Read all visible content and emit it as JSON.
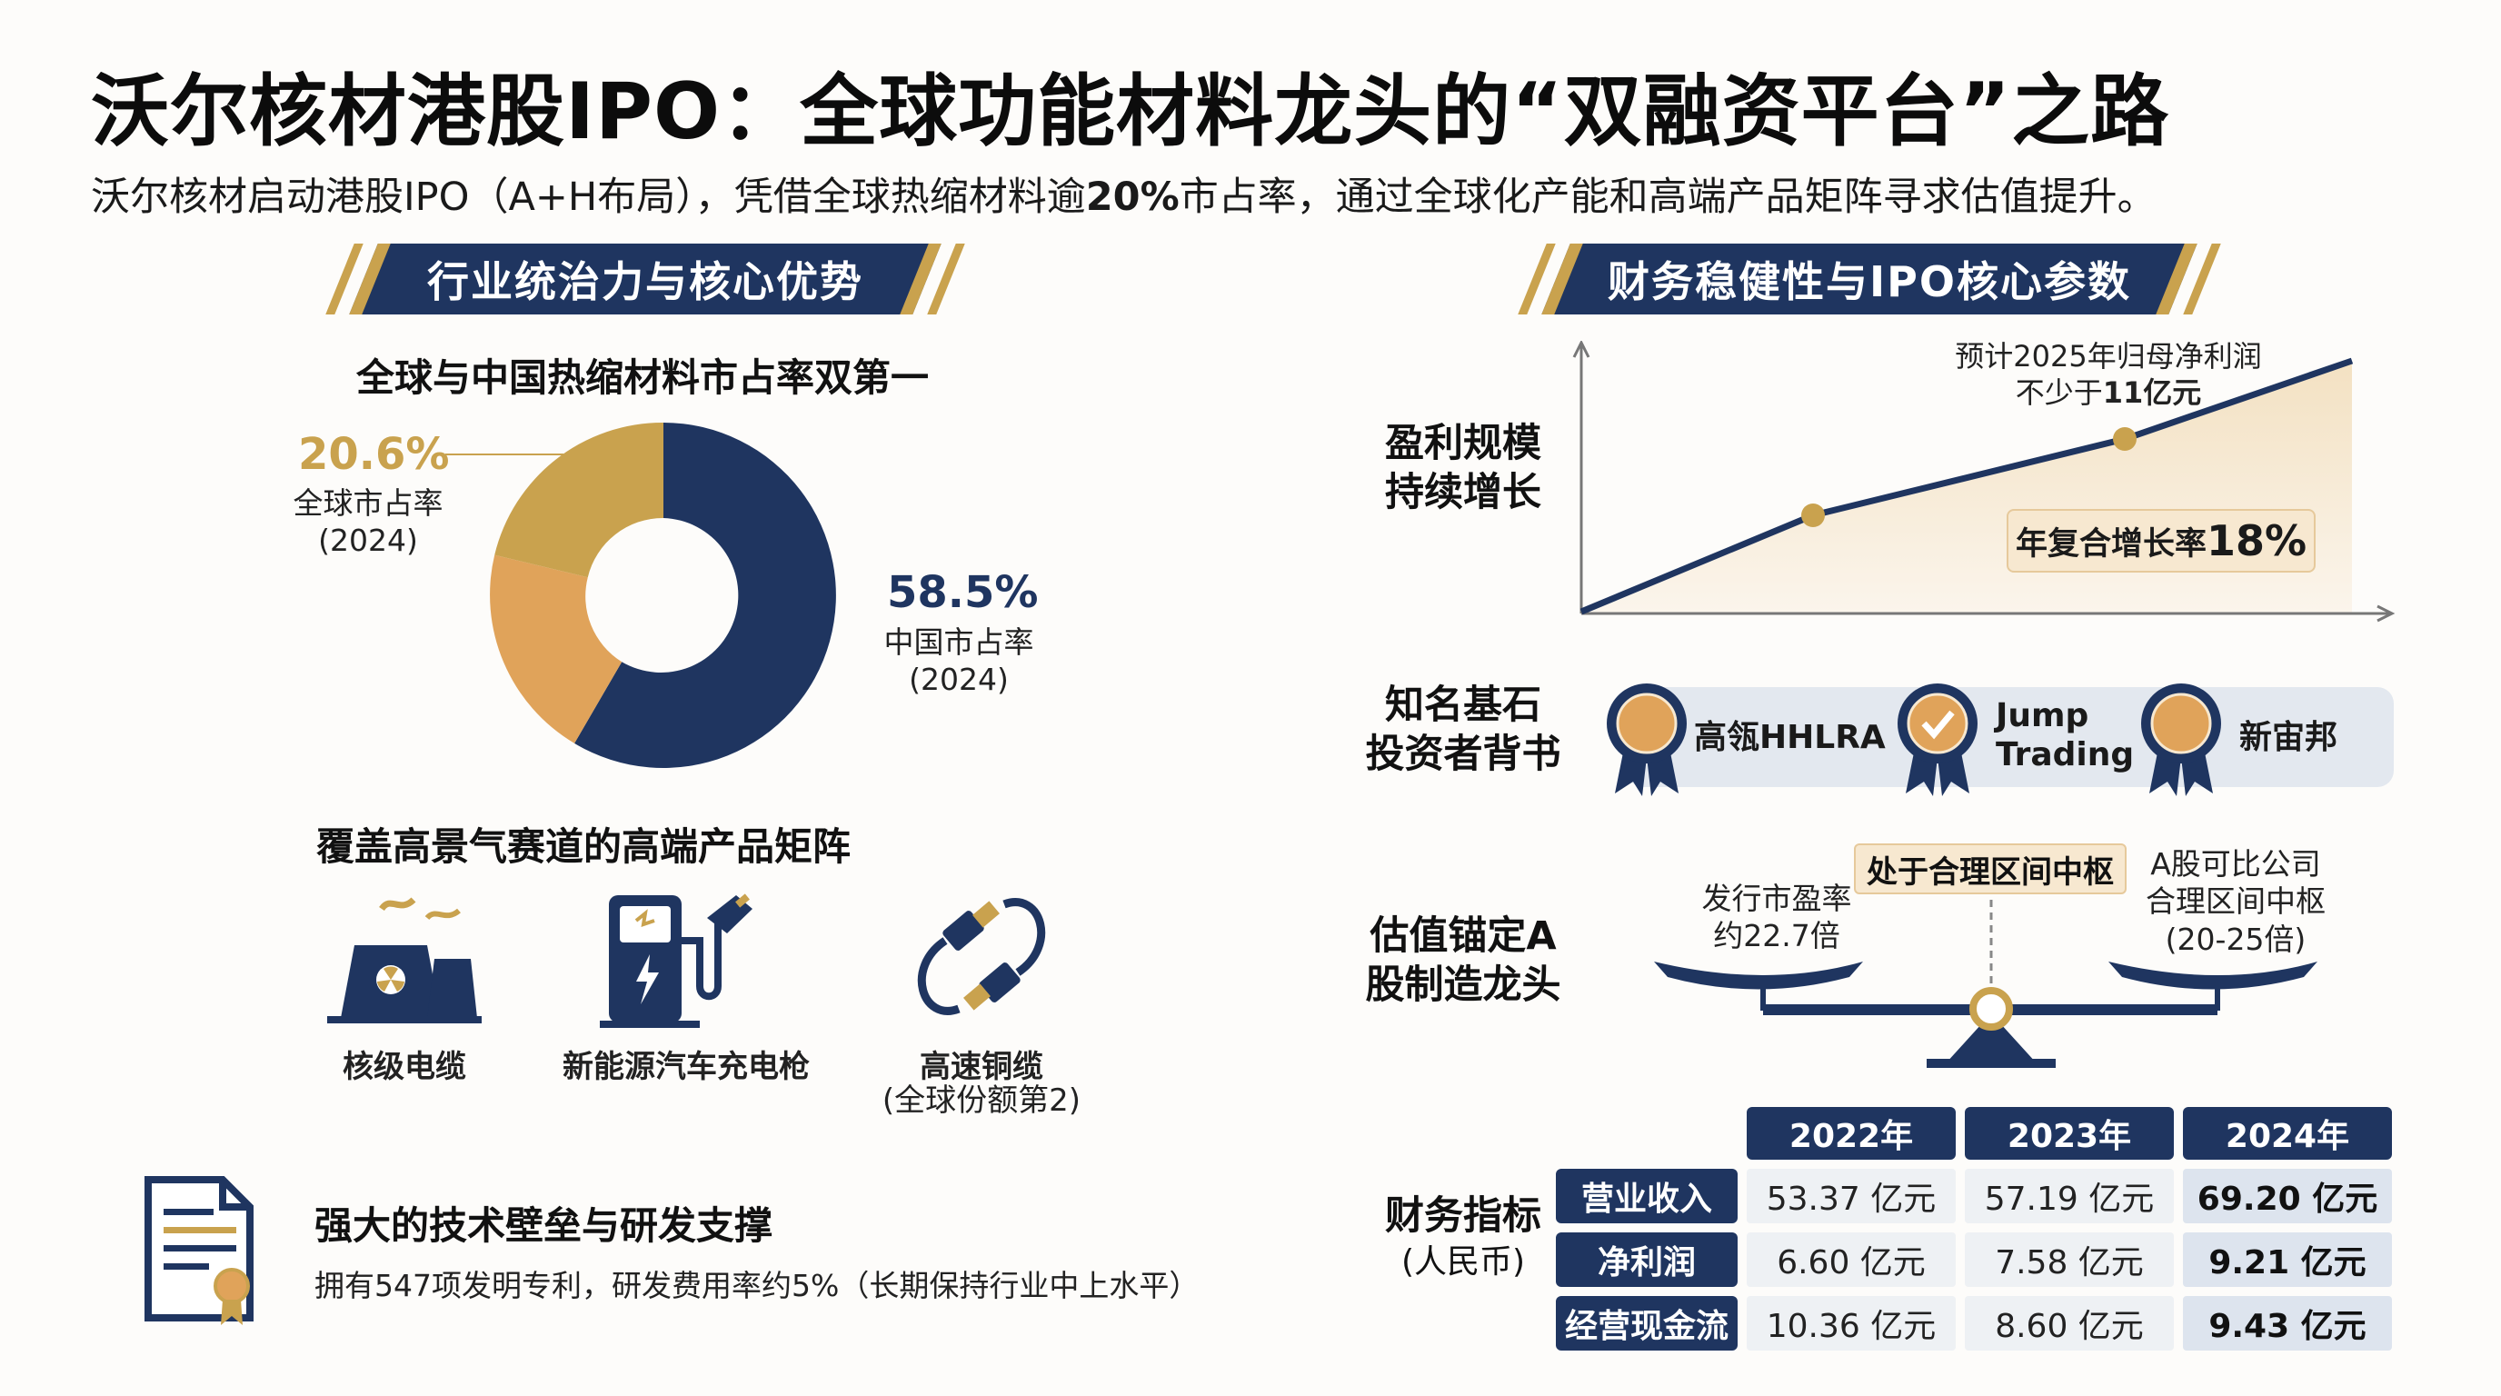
{
  "title": "沃尔核材港股IPO：全球功能材料龙头的“双融资平台”之路",
  "subtitle": {
    "pre": "沃尔核材启动港股IPO（A+H布局），凭借全球热缩材料逾",
    "bold": "20%",
    "post": "市占率，通过全球化产能和高端产品矩阵寻求估值提升。"
  },
  "left": {
    "banner": "行业统治力与核心优势",
    "market_share_heading": "全球与中国热缩材料市占率双第一",
    "global_pct": "20.6%",
    "global_label": "全球市占率",
    "global_year": "(2024)",
    "china_pct": "58.5%",
    "china_label": "中国市占率",
    "china_year": "(2024)",
    "products_heading": "覆盖高景气赛道的高端产品矩阵",
    "products": [
      {
        "icon": "nuclear-plant-icon",
        "label": "核级电缆",
        "note": ""
      },
      {
        "icon": "ev-charger-icon",
        "label": "新能源汽车充电枪",
        "note": ""
      },
      {
        "icon": "cable-icon",
        "label": "高速铜缆",
        "note": "(全球份额第2)"
      }
    ],
    "tech_heading": "强大的技术壁垒与研发支撑",
    "tech_text": "拥有547项发明专利，研发费用率约5%（长期保持行业中上水平）"
  },
  "right": {
    "banner": "财务稳健性与IPO核心参数",
    "profit_label_1": "盈利规模",
    "profit_label_2": "持续增长",
    "forecast_1": "预计2025年归母净利润",
    "forecast_2_pre": "不少于",
    "forecast_2_bold": "11亿元",
    "cagr_pre": "年复合增长率",
    "cagr_val": "18%",
    "investor_label_1": "知名基石",
    "investor_label_2": "投资者背书",
    "investors": [
      "高瓴HHLRA",
      "Jump",
      "Trading",
      "新宙邦"
    ],
    "valuation_label_1": "估值锚定A",
    "valuation_label_2": "股制造龙头",
    "val_center": "处于合理区间中枢",
    "val_left_1": "发行市盈率",
    "val_left_2": "约22.7倍",
    "val_right_1": "A股可比公司",
    "val_right_2": "合理区间中枢",
    "val_right_3": "(20-25倍)",
    "fin_label_1": "财务指标",
    "fin_label_2": "(人民币)",
    "years": [
      "2022年",
      "2023年",
      "2024年"
    ],
    "rows": [
      {
        "name": "营业收入",
        "values": [
          "53.37 亿元",
          "57.19 亿元",
          "69.20 亿元"
        ]
      },
      {
        "name": "净利润",
        "values": [
          "6.60 亿元",
          "7.58 亿元",
          "9.21 亿元"
        ]
      },
      {
        "name": "经营现金流",
        "values": [
          "10.36 亿元",
          "8.60 亿元",
          "9.43 亿元"
        ]
      }
    ]
  },
  "colors": {
    "navy": "#1f3560",
    "gold": "#c9a24e",
    "orange": "#e0a35a",
    "sand": "#f5e6cc"
  }
}
